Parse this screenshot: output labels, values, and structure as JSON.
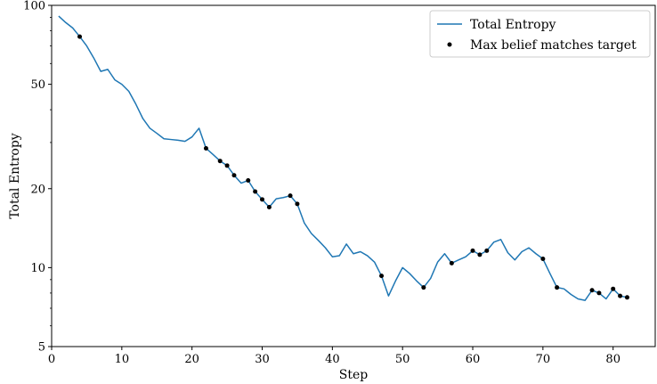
{
  "chart_data": {
    "type": "line",
    "title": "",
    "xlabel": "Step",
    "ylabel": "Total Entropy",
    "xlim": [
      0,
      86
    ],
    "ylim": [
      5,
      100
    ],
    "yscale": "log",
    "grid": false,
    "legend_position": "top-right",
    "x_ticks": [
      0,
      10,
      20,
      30,
      40,
      50,
      60,
      70,
      80
    ],
    "y_ticks": [
      5,
      10,
      20,
      50,
      100
    ],
    "series": [
      {
        "name": "Total Entropy",
        "kind": "line",
        "color": "#1f77b4",
        "x": [
          1,
          2,
          3,
          4,
          5,
          6,
          7,
          8,
          9,
          10,
          11,
          12,
          13,
          14,
          15,
          16,
          17,
          18,
          19,
          20,
          21,
          22,
          23,
          24,
          25,
          26,
          27,
          28,
          29,
          30,
          31,
          32,
          33,
          34,
          35,
          36,
          37,
          38,
          39,
          40,
          41,
          42,
          43,
          44,
          45,
          46,
          47,
          48,
          49,
          50,
          51,
          52,
          53,
          54,
          55,
          56,
          57,
          58,
          59,
          60,
          61,
          62,
          63,
          64,
          65,
          66,
          67,
          68,
          69,
          70,
          71,
          72,
          73,
          74,
          75,
          76,
          77,
          78,
          79,
          80,
          81,
          82
        ],
        "y": [
          91,
          86,
          82,
          76,
          70,
          63,
          56,
          57,
          52,
          50,
          47,
          42,
          37,
          34,
          32.5,
          31,
          30.8,
          30.6,
          30.3,
          31.5,
          34,
          28.5,
          27,
          25.5,
          24.5,
          22.5,
          21,
          21.5,
          19.5,
          18.2,
          17,
          18.3,
          18.5,
          18.8,
          17.5,
          14.8,
          13.5,
          12.7,
          11.9,
          11,
          11.1,
          12.3,
          11.3,
          11.5,
          11.1,
          10.5,
          9.3,
          7.8,
          8.9,
          10,
          9.5,
          8.9,
          8.4,
          9.1,
          10.5,
          11.3,
          10.4,
          10.7,
          11.0,
          11.6,
          11.2,
          11.6,
          12.5,
          12.8,
          11.4,
          10.7,
          11.5,
          11.9,
          11.3,
          10.8,
          9.5,
          8.4,
          8.3,
          7.9,
          7.6,
          7.5,
          8.2,
          8.0,
          7.6,
          8.3,
          7.8,
          7.7
        ]
      },
      {
        "name": "Max belief matches target",
        "kind": "scatter",
        "color": "#000000",
        "x": [
          4,
          22,
          24,
          25,
          26,
          28,
          29,
          30,
          31,
          34,
          35,
          47,
          53,
          57,
          60,
          61,
          62,
          70,
          72,
          77,
          78,
          80,
          81,
          82
        ],
        "y": [
          76,
          28.5,
          25.5,
          24.5,
          22.5,
          21.5,
          19.5,
          18.2,
          17,
          18.8,
          17.5,
          9.3,
          8.4,
          10.4,
          11.6,
          11.2,
          11.6,
          10.8,
          8.4,
          8.2,
          8.0,
          8.3,
          7.8,
          7.7
        ]
      }
    ]
  }
}
